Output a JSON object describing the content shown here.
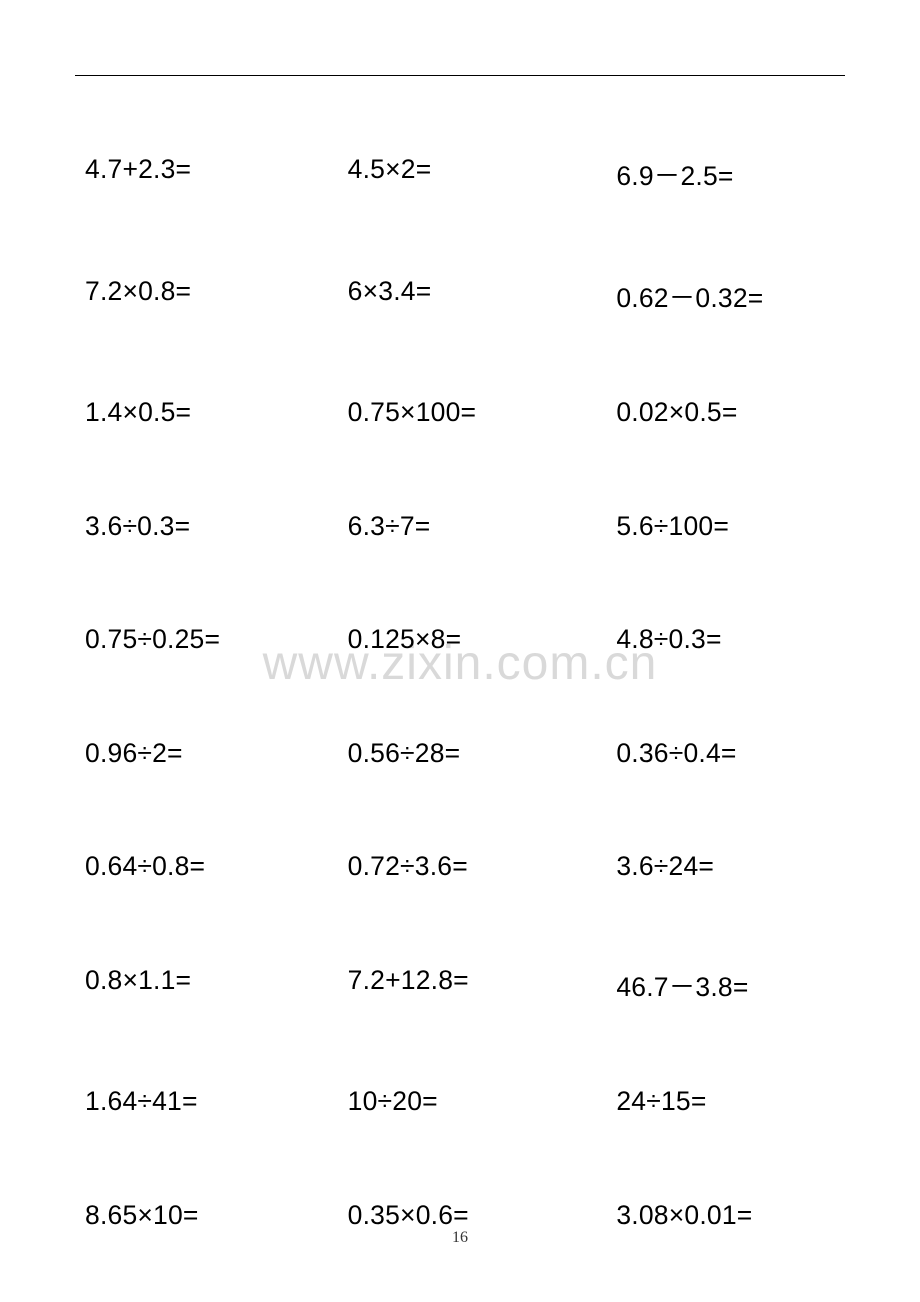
{
  "page": {
    "number": "16",
    "watermark": "www.zixin.com.cn",
    "background_color": "#ffffff",
    "text_color": "#000000",
    "watermark_color": "#d9d9d9",
    "font_size_cell": 26.5,
    "font_size_watermark": 48,
    "font_size_pagenum": 16
  },
  "problems": {
    "rows": [
      [
        "4.7+2.3=",
        "4.5×2=",
        "6.9－2.5="
      ],
      [
        "7.2×0.8=",
        "6×3.4=",
        "0.62－0.32="
      ],
      [
        "1.4×0.5=",
        "0.75×100=",
        "0.02×0.5="
      ],
      [
        "3.6÷0.3=",
        "6.3÷7=",
        "5.6÷100="
      ],
      [
        "0.75÷0.25=",
        "0.125×8=",
        "4.8÷0.3="
      ],
      [
        "0.96÷2=",
        "0.56÷28=",
        "0.36÷0.4="
      ],
      [
        "0.64÷0.8=",
        "0.72÷3.6=",
        "3.6÷24="
      ],
      [
        "0.8×1.1=",
        "7.2+12.8=",
        "46.7－3.8="
      ],
      [
        "1.64÷41=",
        "10÷20=",
        "24÷15="
      ],
      [
        "8.65×10=",
        "0.35×0.6=",
        "3.08×0.01="
      ]
    ]
  }
}
